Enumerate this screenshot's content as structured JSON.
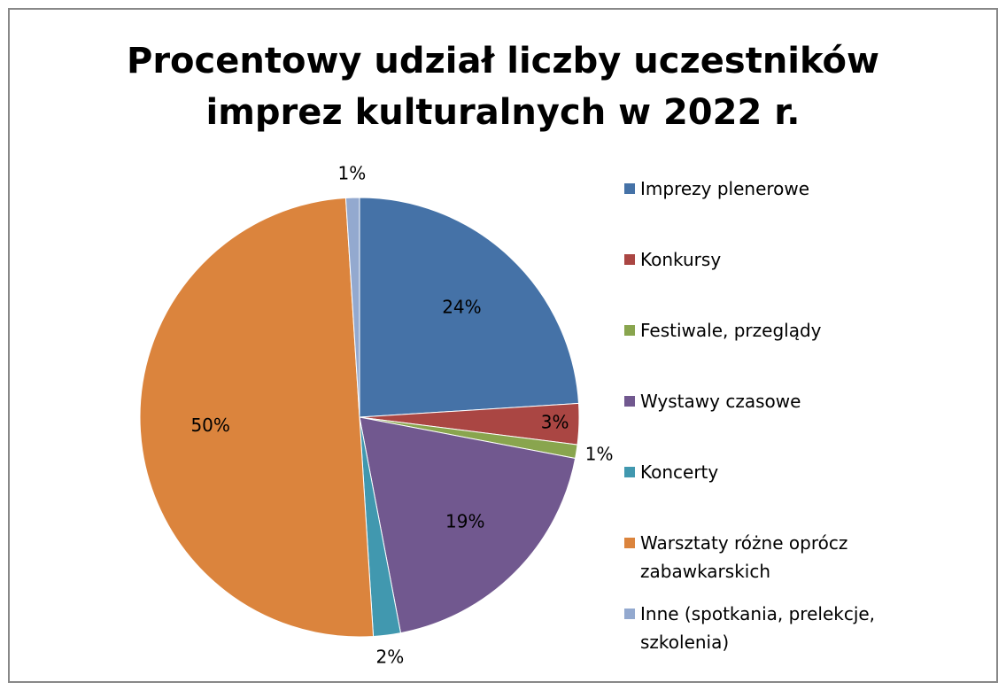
{
  "chart_data": {
    "type": "pie",
    "title": "Procentowy udział liczby uczestników imprez kulturalnych w 2022 r.",
    "categories": [
      "Imprezy plenerowe",
      "Konkursy",
      "Festiwale, przeglądy",
      "Wystawy czasowe",
      "Koncerty",
      "Warsztaty różne oprócz zabawkarskich",
      "Inne (spotkania, prelekcje, szkolenia)"
    ],
    "values": [
      24,
      3,
      1,
      19,
      2,
      50,
      1
    ],
    "value_labels": [
      "24%",
      "3%",
      "1%",
      "19%",
      "2%",
      "50%",
      "1%"
    ],
    "colors": [
      "#4572a7",
      "#aa4643",
      "#89a54e",
      "#71588f",
      "#4198af",
      "#db843d",
      "#93a9cf"
    ],
    "legend": "right"
  }
}
